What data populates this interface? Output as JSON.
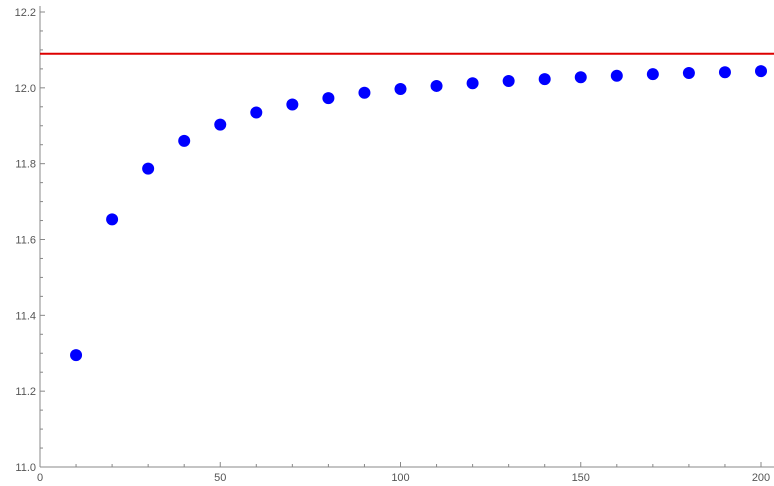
{
  "chart_data": {
    "type": "scatter",
    "title": "",
    "xlabel": "",
    "ylabel": "",
    "xlim": [
      0,
      205
    ],
    "ylim": [
      11.0,
      12.2
    ],
    "x_ticks": [
      0,
      50,
      100,
      150,
      200
    ],
    "x_tick_labels": [
      "0",
      "50",
      "100",
      "150",
      "200"
    ],
    "y_ticks": [
      11.0,
      11.2,
      11.4,
      11.6,
      11.8,
      12.0,
      12.2
    ],
    "y_tick_labels": [
      "11.0",
      "11.2",
      "11.4",
      "11.6",
      "11.8",
      "12.0",
      "12.2"
    ],
    "grid": false,
    "series": [
      {
        "color": "#0000ff",
        "x": [
          10,
          20,
          30,
          40,
          50,
          60,
          70,
          80,
          90,
          100,
          110,
          120,
          130,
          140,
          150,
          160,
          170,
          180,
          190,
          200
        ],
        "y": [
          11.295,
          11.653,
          11.787,
          11.86,
          11.903,
          11.935,
          11.956,
          11.973,
          11.987,
          11.997,
          12.005,
          12.012,
          12.018,
          12.023,
          12.028,
          12.032,
          12.036,
          12.039,
          12.041,
          12.044
        ]
      }
    ],
    "reference_lines": [
      {
        "orientation": "horizontal",
        "y": 12.09,
        "color": "#dd0000"
      }
    ]
  }
}
